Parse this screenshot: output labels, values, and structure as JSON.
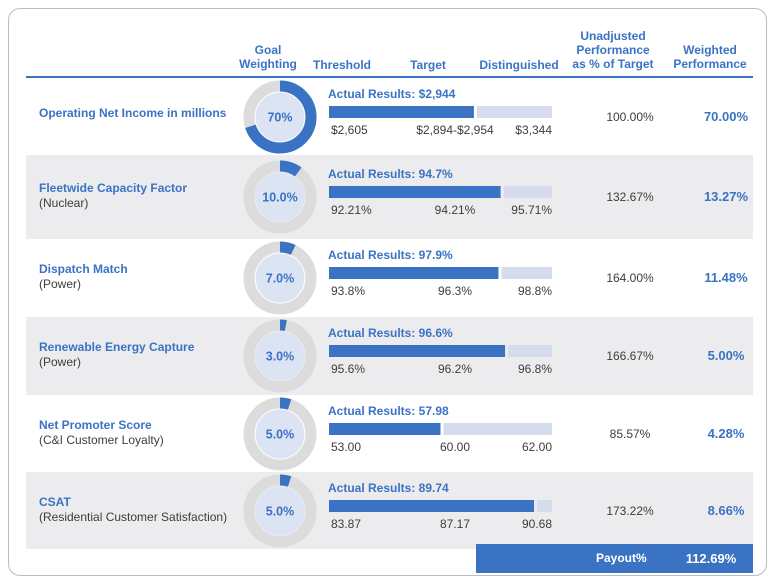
{
  "headers": {
    "goal_line1": "Goal",
    "goal_line2": "Weighting",
    "threshold": "Threshold",
    "target": "Target",
    "distinguished": "Distinguished",
    "unadj_line1": "Unadjusted",
    "unadj_line2": "Performance",
    "unadj_line3": "as % of Target",
    "weighted_line1": "Weighted",
    "weighted_line2": "Performance"
  },
  "colors": {
    "accent": "#3a73c4",
    "bar_track": "#d5dcec",
    "donut_ring": "#dcdcdc",
    "donut_center": "#dce3f3",
    "row_shade": "#ececef"
  },
  "chart_data": {
    "type": "table",
    "rows": [
      {
        "name": "Operating Net Income in millions",
        "sub": "",
        "weighting_label": "70%",
        "weighting": 70,
        "actual_label": "Actual Results: $2,944",
        "bar_fill": 0.65,
        "threshold": "$2,605",
        "target": "$2,894-$2,954",
        "distinguished": "$3,344",
        "unadjusted": "100.00%",
        "weighted": "70.00%"
      },
      {
        "name": "Fleetwide Capacity Factor",
        "sub": "(Nuclear)",
        "weighting_label": "10.0%",
        "weighting": 10,
        "actual_label": "Actual Results: 94.7%",
        "bar_fill": 0.77,
        "threshold": "92.21%",
        "target": "94.21%",
        "distinguished": "95.71%",
        "unadjusted": "132.67%",
        "weighted": "13.27%"
      },
      {
        "name": "Dispatch Match",
        "sub": "(Power)",
        "weighting_label": "7.0%",
        "weighting": 7,
        "actual_label": "Actual Results: 97.9%",
        "bar_fill": 0.76,
        "threshold": "93.8%",
        "target": "96.3%",
        "distinguished": "98.8%",
        "unadjusted": "164.00%",
        "weighted": "11.48%"
      },
      {
        "name": "Renewable Energy Capture",
        "sub": "(Power)",
        "weighting_label": "3.0%",
        "weighting": 3,
        "actual_label": "Actual Results: 96.6%",
        "bar_fill": 0.79,
        "threshold": "95.6%",
        "target": "96.2%",
        "distinguished": "96.8%",
        "unadjusted": "166.67%",
        "weighted": "5.00%"
      },
      {
        "name": "Net Promoter Score",
        "sub": "(C&I Customer Loyalty)",
        "weighting_label": "5.0%",
        "weighting": 5,
        "actual_label": "Actual Results: 57.98",
        "bar_fill": 0.5,
        "threshold": "53.00",
        "target": "60.00",
        "distinguished": "62.00",
        "unadjusted": "85.57%",
        "weighted": "4.28%"
      },
      {
        "name": "CSAT",
        "sub": "(Residential Customer Satisfaction)",
        "weighting_label": "5.0%",
        "weighting": 5,
        "actual_label": "Actual Results: 89.74",
        "bar_fill": 0.92,
        "threshold": "83.87",
        "target": "87.17",
        "distinguished": "90.68",
        "unadjusted": "173.22%",
        "weighted": "8.66%"
      }
    ]
  },
  "payout": {
    "label": "Payout%",
    "value": "112.69%"
  }
}
